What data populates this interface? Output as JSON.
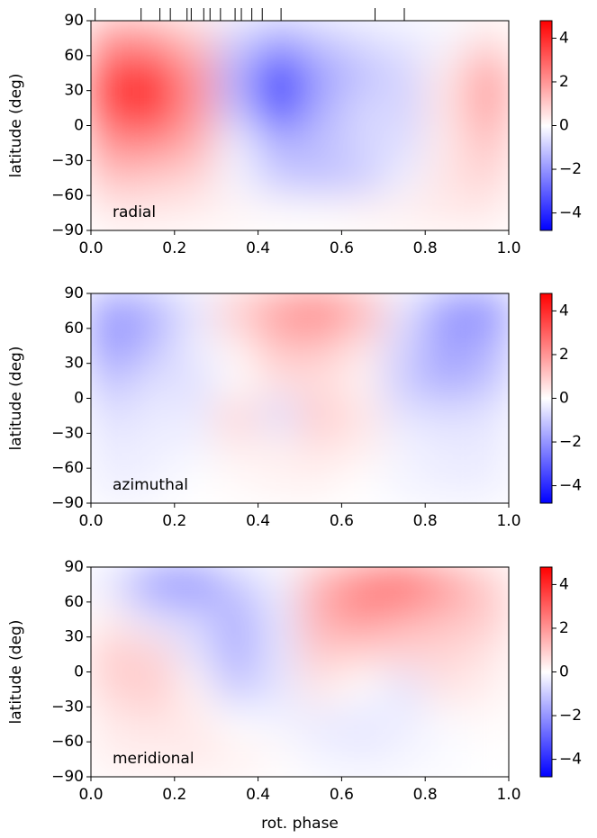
{
  "chart_data": [
    {
      "type": "heatmap",
      "label": "radial",
      "ylabel": "latitude (deg)",
      "colormap": "bwr",
      "obs_phases": [
        0.01,
        0.12,
        0.165,
        0.19,
        0.23,
        0.24,
        0.27,
        0.285,
        0.31,
        0.345,
        0.36,
        0.385,
        0.41,
        0.455,
        0.68,
        0.75
      ],
      "x": [
        0.05,
        0.15,
        0.25,
        0.35,
        0.45,
        0.55,
        0.65,
        0.75,
        0.85,
        0.95
      ],
      "y": [
        75,
        45,
        15,
        -15,
        -45,
        -75
      ],
      "z": [
        [
          2.0,
          1.8,
          1.0,
          -0.8,
          -1.5,
          -1.0,
          -0.6,
          -0.4,
          -0.2,
          0.5
        ],
        [
          3.5,
          3.8,
          2.0,
          -1.5,
          -3.8,
          -1.8,
          -1.2,
          -0.8,
          0.4,
          1.8
        ],
        [
          3.5,
          4.0,
          2.0,
          -1.2,
          -3.5,
          -1.6,
          -0.8,
          -0.8,
          0.5,
          1.8
        ],
        [
          2.2,
          2.2,
          1.5,
          -0.3,
          -1.5,
          -1.2,
          -0.8,
          -0.6,
          0.4,
          1.2
        ],
        [
          1.2,
          1.0,
          0.8,
          -0.2,
          -1.0,
          -1.2,
          -1.0,
          -0.3,
          0.5,
          0.8
        ],
        [
          0.4,
          0.4,
          0.3,
          0.2,
          0.1,
          0.1,
          0.2,
          0.3,
          0.4,
          0.4
        ]
      ],
      "xlim": [
        0,
        1
      ],
      "ylim": [
        -90,
        90
      ],
      "xticks": [
        {
          "value": 0,
          "label": "0.0"
        },
        {
          "value": 0.2,
          "label": "0.2"
        },
        {
          "value": 0.4,
          "label": "0.4"
        },
        {
          "value": 0.6,
          "label": "0.6"
        },
        {
          "value": 0.8,
          "label": "0.8"
        },
        {
          "value": 1,
          "label": "1.0"
        }
      ],
      "yticks": [
        {
          "value": -90,
          "label": "−90"
        },
        {
          "value": -60,
          "label": "−60"
        },
        {
          "value": -30,
          "label": "−30"
        },
        0,
        30,
        60,
        90
      ],
      "clim": [
        -4.8,
        4.8
      ],
      "cticks": [
        {
          "value": -4,
          "label": "−4"
        },
        {
          "value": -2,
          "label": "−2"
        },
        0,
        2,
        4
      ]
    },
    {
      "type": "heatmap",
      "label": "azimuthal",
      "ylabel": "latitude (deg)",
      "colormap": "bwr",
      "x": [
        0.05,
        0.15,
        0.25,
        0.35,
        0.45,
        0.55,
        0.65,
        0.75,
        0.85,
        0.95
      ],
      "y": [
        75,
        45,
        15,
        -15,
        -45,
        -75
      ],
      "z": [
        [
          -2.0,
          -1.5,
          -0.5,
          1.0,
          2.0,
          2.5,
          1.5,
          -0.5,
          -2.0,
          -2.2
        ],
        [
          -2.0,
          -1.2,
          -0.3,
          0.3,
          1.2,
          1.2,
          0.5,
          -0.8,
          -1.8,
          -1.5
        ],
        [
          -1.2,
          -0.6,
          -0.6,
          0.0,
          0.6,
          0.6,
          0.2,
          -1.0,
          -1.6,
          -1.2
        ],
        [
          -0.6,
          -0.4,
          -0.4,
          0.8,
          -0.6,
          1.0,
          0.5,
          -0.5,
          -0.6,
          -0.5
        ],
        [
          -0.4,
          -0.3,
          -0.2,
          0.3,
          0.3,
          0.5,
          0.3,
          -0.2,
          -0.4,
          -0.4
        ],
        [
          -0.3,
          -0.2,
          0.0,
          0.1,
          0.2,
          0.2,
          0.0,
          -0.2,
          -0.3,
          -0.3
        ]
      ],
      "xlim": [
        0,
        1
      ],
      "ylim": [
        -90,
        90
      ],
      "xticks": [
        {
          "value": 0,
          "label": "0.0"
        },
        {
          "value": 0.2,
          "label": "0.2"
        },
        {
          "value": 0.4,
          "label": "0.4"
        },
        {
          "value": 0.6,
          "label": "0.6"
        },
        {
          "value": 0.8,
          "label": "0.8"
        },
        {
          "value": 1,
          "label": "1.0"
        }
      ],
      "yticks": [
        {
          "value": -90,
          "label": "−90"
        },
        {
          "value": -60,
          "label": "−60"
        },
        {
          "value": -30,
          "label": "−30"
        },
        0,
        30,
        60,
        90
      ],
      "clim": [
        -4.8,
        4.8
      ],
      "cticks": [
        {
          "value": -4,
          "label": "−4"
        },
        {
          "value": -2,
          "label": "−2"
        },
        0,
        2,
        4
      ]
    },
    {
      "type": "heatmap",
      "label": "meridional",
      "ylabel": "latitude (deg)",
      "xlabel": "rot. phase",
      "colormap": "bwr",
      "x": [
        0.05,
        0.15,
        0.25,
        0.35,
        0.45,
        0.55,
        0.65,
        0.75,
        0.85,
        0.95
      ],
      "y": [
        75,
        45,
        15,
        -15,
        -45,
        -75
      ],
      "z": [
        [
          -0.5,
          -2.0,
          -2.2,
          -1.0,
          -0.3,
          1.5,
          2.5,
          3.0,
          2.0,
          1.0
        ],
        [
          0.3,
          -0.5,
          -0.8,
          -1.5,
          -0.5,
          1.5,
          2.0,
          1.5,
          1.2,
          1.0
        ],
        [
          1.0,
          0.8,
          -0.5,
          -1.5,
          -0.5,
          1.0,
          0.8,
          0.8,
          0.8,
          0.5
        ],
        [
          0.8,
          1.0,
          0.2,
          -1.0,
          -0.5,
          0.4,
          0.0,
          -0.5,
          0.5,
          0.3
        ],
        [
          0.4,
          0.5,
          0.4,
          0.0,
          -0.2,
          -0.4,
          -0.5,
          -0.3,
          -0.1,
          0.1
        ],
        [
          0.3,
          0.3,
          0.4,
          0.3,
          0.1,
          -0.2,
          -0.3,
          -0.2,
          -0.1,
          0.0
        ]
      ],
      "xlim": [
        0,
        1
      ],
      "ylim": [
        -90,
        90
      ],
      "xticks": [
        {
          "value": 0,
          "label": "0.0"
        },
        {
          "value": 0.2,
          "label": "0.2"
        },
        {
          "value": 0.4,
          "label": "0.4"
        },
        {
          "value": 0.6,
          "label": "0.6"
        },
        {
          "value": 0.8,
          "label": "0.8"
        },
        {
          "value": 1,
          "label": "1.0"
        }
      ],
      "yticks": [
        {
          "value": -90,
          "label": "−90"
        },
        {
          "value": -60,
          "label": "−60"
        },
        {
          "value": -30,
          "label": "−30"
        },
        0,
        30,
        60,
        90
      ],
      "clim": [
        -4.8,
        4.8
      ],
      "cticks": [
        {
          "value": -4,
          "label": "−4"
        },
        {
          "value": -2,
          "label": "−2"
        },
        0,
        2,
        4
      ]
    }
  ]
}
